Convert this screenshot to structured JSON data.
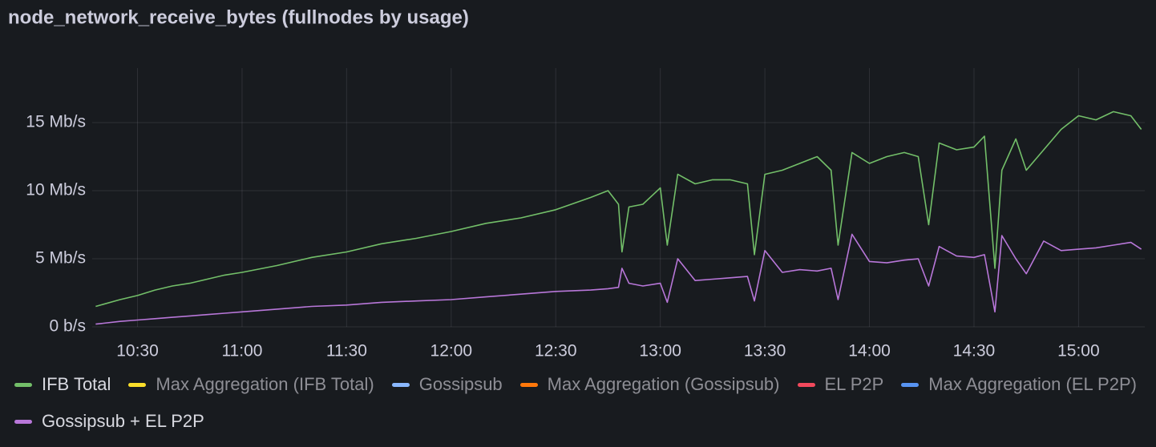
{
  "chart_data": {
    "type": "line",
    "title": "node_network_receive_bytes (fullnodes by usage)",
    "x": [
      "10:18",
      "10:25",
      "10:30",
      "10:35",
      "10:40",
      "10:45",
      "10:50",
      "10:55",
      "11:00",
      "11:10",
      "11:20",
      "11:30",
      "11:40",
      "11:50",
      "12:00",
      "12:10",
      "12:20",
      "12:30",
      "12:40",
      "12:45",
      "12:48",
      "12:49",
      "12:51",
      "12:55",
      "13:00",
      "13:02",
      "13:05",
      "13:10",
      "13:15",
      "13:20",
      "13:25",
      "13:27",
      "13:30",
      "13:35",
      "13:40",
      "13:45",
      "13:49",
      "13:51",
      "13:55",
      "14:00",
      "14:05",
      "14:10",
      "14:14",
      "14:17",
      "14:20",
      "14:25",
      "14:30",
      "14:33",
      "14:36",
      "14:38",
      "14:42",
      "14:45",
      "14:50",
      "14:55",
      "15:00",
      "15:05",
      "15:10",
      "15:15",
      "15:18"
    ],
    "xlim": [
      "10:17",
      "15:19"
    ],
    "xticks": [
      "10:30",
      "11:00",
      "11:30",
      "12:00",
      "12:30",
      "13:00",
      "13:30",
      "14:00",
      "14:30",
      "15:00"
    ],
    "ylim": [
      0,
      19
    ],
    "yticks": [
      {
        "value": 0,
        "label": "0 b/s"
      },
      {
        "value": 5,
        "label": "5 Mb/s"
      },
      {
        "value": 10,
        "label": "10 Mb/s"
      },
      {
        "value": 15,
        "label": "15 Mb/s"
      }
    ],
    "grid": true,
    "legend": "bottom",
    "series": [
      {
        "name": "IFB Total",
        "color": "#73bf69",
        "hidden": false,
        "values": [
          1.5,
          2.0,
          2.3,
          2.7,
          3.0,
          3.2,
          3.5,
          3.8,
          4.0,
          4.5,
          5.1,
          5.5,
          6.1,
          6.5,
          7.0,
          7.6,
          8.0,
          8.6,
          9.5,
          10.0,
          9.0,
          5.5,
          8.8,
          9.0,
          10.2,
          6.0,
          11.2,
          10.5,
          10.8,
          10.8,
          10.5,
          5.3,
          11.2,
          11.5,
          12.0,
          12.5,
          11.5,
          6.0,
          12.8,
          12.0,
          12.5,
          12.8,
          12.5,
          7.5,
          13.5,
          13.0,
          13.2,
          14.0,
          4.3,
          11.5,
          13.8,
          11.5,
          13.0,
          14.5,
          15.5,
          15.2,
          15.8,
          15.5,
          14.5
        ]
      },
      {
        "name": "Max Aggregation (IFB Total)",
        "color": "#fade2a",
        "hidden": true,
        "values": [
          null,
          null,
          null,
          null,
          null,
          null,
          null,
          null,
          null,
          null,
          null,
          null,
          null,
          null,
          null,
          null,
          null,
          null,
          null,
          null,
          null,
          null,
          null,
          null,
          null,
          null,
          null,
          null,
          null,
          null,
          null,
          null,
          null,
          null,
          null,
          null,
          null,
          null,
          null,
          null,
          null,
          null,
          null,
          null,
          null,
          null,
          null,
          null,
          null,
          null,
          null,
          null,
          null,
          null,
          null,
          null,
          null,
          null,
          null
        ]
      },
      {
        "name": "Gossipsub",
        "color": "#8ab8ff",
        "hidden": true,
        "values": [
          null,
          null,
          null,
          null,
          null,
          null,
          null,
          null,
          null,
          null,
          null,
          null,
          null,
          null,
          null,
          null,
          null,
          null,
          null,
          null,
          null,
          null,
          null,
          null,
          null,
          null,
          null,
          null,
          null,
          null,
          null,
          null,
          null,
          null,
          null,
          null,
          null,
          null,
          null,
          null,
          null,
          null,
          null,
          null,
          null,
          null,
          null,
          null,
          null,
          null,
          null,
          null,
          null,
          null,
          null,
          null,
          null,
          null,
          null
        ]
      },
      {
        "name": "Max Aggregation (Gossipsub)",
        "color": "#ff780a",
        "hidden": true,
        "values": [
          null,
          null,
          null,
          null,
          null,
          null,
          null,
          null,
          null,
          null,
          null,
          null,
          null,
          null,
          null,
          null,
          null,
          null,
          null,
          null,
          null,
          null,
          null,
          null,
          null,
          null,
          null,
          null,
          null,
          null,
          null,
          null,
          null,
          null,
          null,
          null,
          null,
          null,
          null,
          null,
          null,
          null,
          null,
          null,
          null,
          null,
          null,
          null,
          null,
          null,
          null,
          null,
          null,
          null,
          null,
          null,
          null,
          null,
          null
        ]
      },
      {
        "name": "EL P2P",
        "color": "#f2495c",
        "hidden": true,
        "values": [
          null,
          null,
          null,
          null,
          null,
          null,
          null,
          null,
          null,
          null,
          null,
          null,
          null,
          null,
          null,
          null,
          null,
          null,
          null,
          null,
          null,
          null,
          null,
          null,
          null,
          null,
          null,
          null,
          null,
          null,
          null,
          null,
          null,
          null,
          null,
          null,
          null,
          null,
          null,
          null,
          null,
          null,
          null,
          null,
          null,
          null,
          null,
          null,
          null,
          null,
          null,
          null,
          null,
          null,
          null,
          null,
          null,
          null,
          null
        ]
      },
      {
        "name": "Max Aggregation (EL P2P)",
        "color": "#5794f2",
        "hidden": true,
        "values": [
          null,
          null,
          null,
          null,
          null,
          null,
          null,
          null,
          null,
          null,
          null,
          null,
          null,
          null,
          null,
          null,
          null,
          null,
          null,
          null,
          null,
          null,
          null,
          null,
          null,
          null,
          null,
          null,
          null,
          null,
          null,
          null,
          null,
          null,
          null,
          null,
          null,
          null,
          null,
          null,
          null,
          null,
          null,
          null,
          null,
          null,
          null,
          null,
          null,
          null,
          null,
          null,
          null,
          null,
          null,
          null,
          null,
          null,
          null
        ]
      },
      {
        "name": "Gossipsub + EL P2P",
        "color": "#b877d9",
        "hidden": false,
        "values": [
          0.2,
          0.4,
          0.5,
          0.6,
          0.7,
          0.8,
          0.9,
          1.0,
          1.1,
          1.3,
          1.5,
          1.6,
          1.8,
          1.9,
          2.0,
          2.2,
          2.4,
          2.6,
          2.7,
          2.8,
          2.9,
          4.3,
          3.2,
          3.0,
          3.2,
          1.8,
          5.0,
          3.4,
          3.5,
          3.6,
          3.7,
          1.9,
          5.6,
          4.0,
          4.2,
          4.1,
          4.3,
          2.0,
          6.8,
          4.8,
          4.7,
          4.9,
          5.0,
          3.0,
          5.9,
          5.2,
          5.1,
          5.3,
          1.1,
          6.7,
          5.0,
          3.9,
          6.3,
          5.6,
          5.7,
          5.8,
          6.0,
          6.2,
          5.7
        ]
      }
    ]
  }
}
